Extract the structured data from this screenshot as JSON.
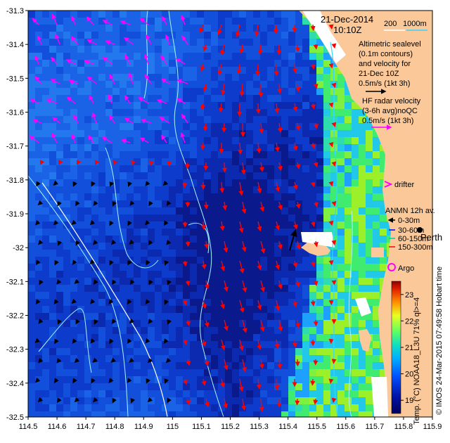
{
  "map": {
    "date": "21-Dec-2014",
    "time": "10:10Z",
    "scale_a": "200",
    "scale_b": "1000m",
    "alt_lines": [
      "Altimetric sealevel",
      "(0.1m contours)",
      "and velocity for",
      "21-Dec 10Z",
      "0.5m/s (1kt 3h)"
    ],
    "hf_lines": [
      "HF radar velocity",
      "(3-6h avg)noQC",
      "0.5m/s (1kt 3h)"
    ],
    "drifter": "drifter",
    "anmn_title": "ANMN 12h av.",
    "anmn": [
      "0-30m",
      "30-60m",
      "60-150m",
      "150-300m"
    ],
    "perth": "Perth",
    "argo": "Argo",
    "colorbar_label": "Temp. (°C) NOAA18_L3U 71% ql>=4",
    "credit": "© IMOS 24-Mar-2015 07:49:58 Hobart time",
    "colorbar_ticks": [
      "23",
      "22",
      "21",
      "20",
      "19"
    ],
    "colors": {
      "land": "#fbc999",
      "sealevel_arrow": "#ff0000",
      "hf_arrow": "#ff00ff",
      "contour": "#a6f4ff"
    }
  },
  "chart_data": {
    "type": "heatmap",
    "title": "",
    "xlabel": "",
    "ylabel": "",
    "xlim": [
      114.5,
      115.9
    ],
    "ylim": [
      -32.5,
      -31.3
    ],
    "x_ticks": [
      "114.5",
      "114.6",
      "114.7",
      "114.8",
      "114.9",
      "115",
      "115.1",
      "115.2",
      "115.3",
      "115.4",
      "115.5",
      "115.6",
      "115.7",
      "115.8",
      "115.9"
    ],
    "y_ticks": [
      "-31.3",
      "-31.4",
      "-31.5",
      "-31.6",
      "-31.7",
      "-31.8",
      "-31.9",
      "-32",
      "-32.1",
      "-32.2",
      "-32.3",
      "-32.4",
      "-32.5"
    ],
    "colorbar": {
      "min": 18.5,
      "max": 23.5,
      "ticks": [
        23,
        22,
        21,
        20,
        19
      ],
      "units": "°C"
    }
  }
}
